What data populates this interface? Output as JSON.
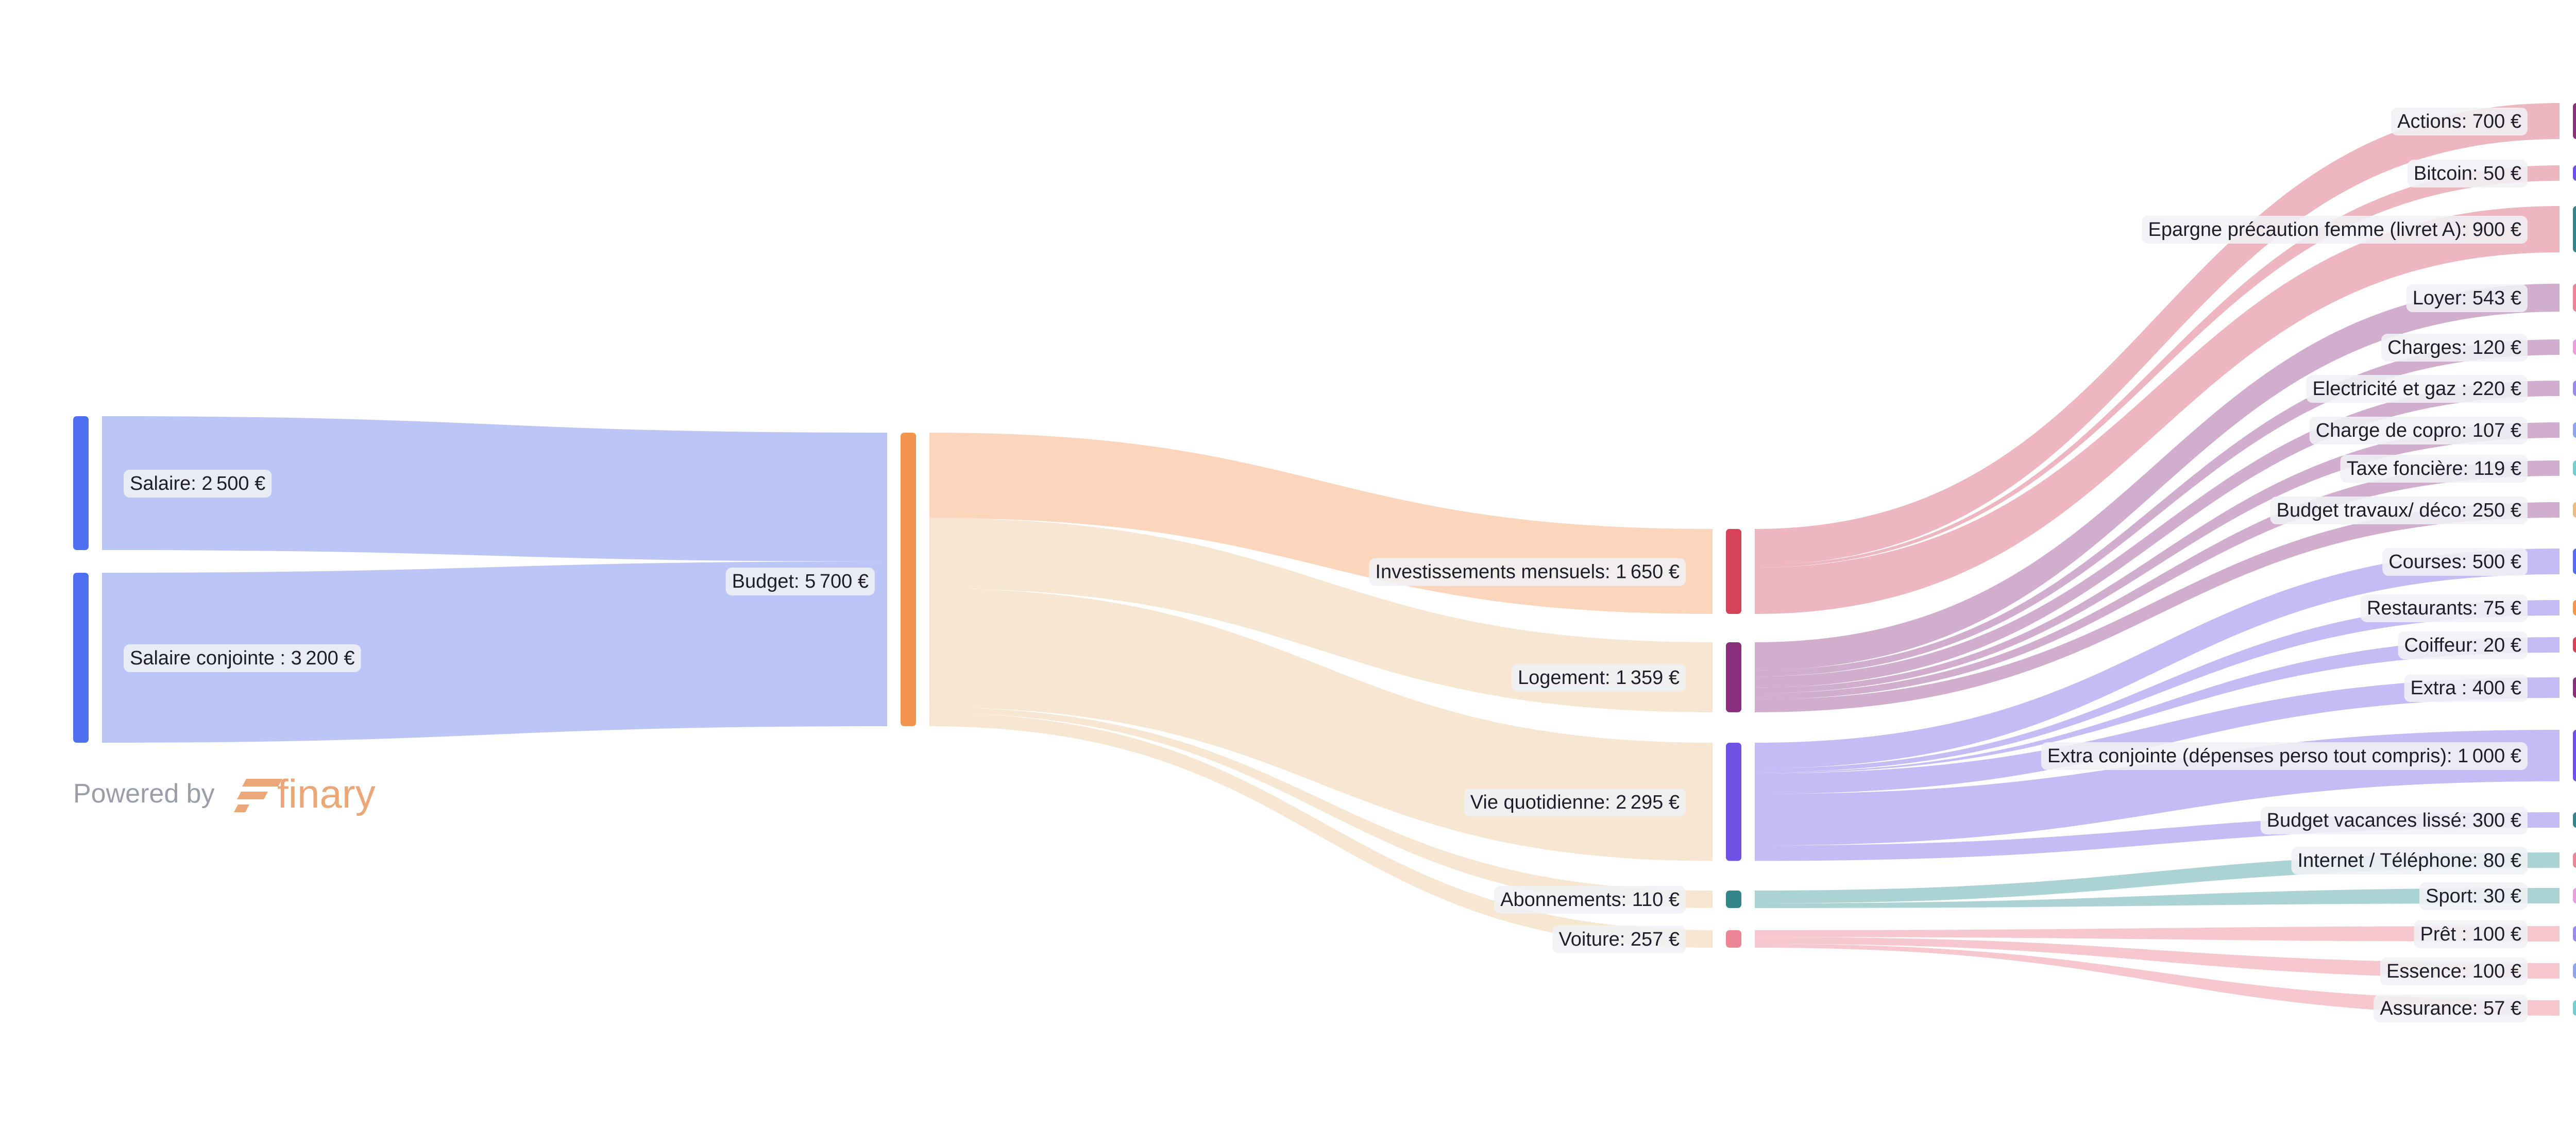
{
  "chart_data": {
    "type": "sankey",
    "currency": "€",
    "columns": [
      [
        {
          "id": "salaire",
          "label": "Salaire",
          "value": 2500,
          "color": "#4f6ef0"
        },
        {
          "id": "salaire_conjointe",
          "label": "Salaire conjointe ",
          "value": 3200,
          "color": "#4f6ef0"
        }
      ],
      [
        {
          "id": "budget",
          "label": "Budget",
          "value": 5700,
          "color": "#f2954f"
        }
      ],
      [
        {
          "id": "investissements",
          "label": "Investissements mensuels",
          "value": 1650,
          "color": "#d64257"
        },
        {
          "id": "logement",
          "label": "Logement",
          "value": 1359,
          "color": "#8a2f7c"
        },
        {
          "id": "vie_quotidienne",
          "label": "Vie quotidienne",
          "value": 2295,
          "color": "#6f52e3"
        },
        {
          "id": "abonnements",
          "label": "Abonnements",
          "value": 110,
          "color": "#33858a"
        },
        {
          "id": "voiture",
          "label": "Voiture",
          "value": 257,
          "color": "#e98594"
        }
      ],
      [
        {
          "id": "actions",
          "label": "Actions",
          "value": 700,
          "color": "#8a2f7c"
        },
        {
          "id": "bitcoin",
          "label": "Bitcoin",
          "value": 50,
          "color": "#6f52e3"
        },
        {
          "id": "epargne",
          "label": "Epargne précaution femme (livret A)",
          "value": 900,
          "color": "#33858a"
        },
        {
          "id": "loyer",
          "label": "Loyer",
          "value": 543,
          "color": "#e98594"
        },
        {
          "id": "charges",
          "label": "Charges",
          "value": 120,
          "color": "#e99ce2"
        },
        {
          "id": "electricite",
          "label": "Electricité et gaz ",
          "value": 220,
          "color": "#9b88ec"
        },
        {
          "id": "copro",
          "label": "Charge de copro",
          "value": 107,
          "color": "#8ba6ea"
        },
        {
          "id": "taxe",
          "label": "Taxe foncière",
          "value": 119,
          "color": "#74cdd0"
        },
        {
          "id": "travaux",
          "label": "Budget travaux/ déco",
          "value": 250,
          "color": "#edbb83"
        },
        {
          "id": "courses",
          "label": "Courses",
          "value": 500,
          "color": "#4f6ef0"
        },
        {
          "id": "restaurants",
          "label": "Restaurants",
          "value": 75,
          "color": "#f2954f"
        },
        {
          "id": "coiffeur",
          "label": "Coiffeur",
          "value": 20,
          "color": "#d64257"
        },
        {
          "id": "extra",
          "label": "Extra ",
          "value": 400,
          "color": "#8a2f7c"
        },
        {
          "id": "extra_conjointe",
          "label": "Extra conjointe (dépenses perso tout compris)",
          "value": 1000,
          "color": "#6f52e3"
        },
        {
          "id": "vacances",
          "label": "Budget vacances lissé",
          "value": 300,
          "color": "#33858a"
        },
        {
          "id": "internet",
          "label": "Internet / Téléphone",
          "value": 80,
          "color": "#e98594"
        },
        {
          "id": "sport",
          "label": "Sport",
          "value": 30,
          "color": "#e99ce2"
        },
        {
          "id": "pret",
          "label": "Prêt ",
          "value": 100,
          "color": "#9b88ec"
        },
        {
          "id": "essence",
          "label": "Essence",
          "value": 100,
          "color": "#8ba6ea"
        },
        {
          "id": "assurance",
          "label": "Assurance",
          "value": 57,
          "color": "#74cdd0"
        }
      ]
    ],
    "links": [
      {
        "source": "salaire",
        "target": "budget",
        "value": 2500,
        "color": "#b7c3f7"
      },
      {
        "source": "salaire_conjointe",
        "target": "budget",
        "value": 3200,
        "color": "#b7c3f7"
      },
      {
        "source": "budget",
        "target": "investissements",
        "value": 1650,
        "color": "#fbd3b8"
      },
      {
        "source": "budget",
        "target": "logement",
        "value": 1359,
        "color": "#f7e5cf"
      },
      {
        "source": "budget",
        "target": "vie_quotidienne",
        "value": 2295,
        "color": "#f7e5cf"
      },
      {
        "source": "budget",
        "target": "abonnements",
        "value": 110,
        "color": "#f7e5cf"
      },
      {
        "source": "budget",
        "target": "voiture",
        "value": 257,
        "color": "#f7e5cf"
      },
      {
        "source": "investissements",
        "target": "actions",
        "value": 700,
        "color": "#ecb2bd"
      },
      {
        "source": "investissements",
        "target": "bitcoin",
        "value": 50,
        "color": "#ecb2bd"
      },
      {
        "source": "investissements",
        "target": "epargne",
        "value": 900,
        "color": "#ecb2bd"
      },
      {
        "source": "logement",
        "target": "loyer",
        "value": 543,
        "color": "#cfa9cb"
      },
      {
        "source": "logement",
        "target": "charges",
        "value": 120,
        "color": "#cfa9cb"
      },
      {
        "source": "logement",
        "target": "electricite",
        "value": 220,
        "color": "#cfa9cb"
      },
      {
        "source": "logement",
        "target": "copro",
        "value": 107,
        "color": "#cfa9cb"
      },
      {
        "source": "logement",
        "target": "taxe",
        "value": 119,
        "color": "#cfa9cb"
      },
      {
        "source": "logement",
        "target": "travaux",
        "value": 250,
        "color": "#cfa9cb"
      },
      {
        "source": "vie_quotidienne",
        "target": "courses",
        "value": 500,
        "color": "#c3b8f4"
      },
      {
        "source": "vie_quotidienne",
        "target": "restaurants",
        "value": 75,
        "color": "#c3b8f4"
      },
      {
        "source": "vie_quotidienne",
        "target": "coiffeur",
        "value": 20,
        "color": "#c3b8f4"
      },
      {
        "source": "vie_quotidienne",
        "target": "extra",
        "value": 400,
        "color": "#c3b8f4"
      },
      {
        "source": "vie_quotidienne",
        "target": "extra_conjointe",
        "value": 1000,
        "color": "#c3b8f4"
      },
      {
        "source": "vie_quotidienne",
        "target": "vacances",
        "value": 300,
        "color": "#c3b8f4"
      },
      {
        "source": "abonnements",
        "target": "internet",
        "value": 80,
        "color": "#a8d1d1"
      },
      {
        "source": "abonnements",
        "target": "sport",
        "value": 30,
        "color": "#a8d1d1"
      },
      {
        "source": "voiture",
        "target": "pret",
        "value": 100,
        "color": "#f6c4cc"
      },
      {
        "source": "voiture",
        "target": "essence",
        "value": 100,
        "color": "#f6c4cc"
      },
      {
        "source": "voiture",
        "target": "assurance",
        "value": 57,
        "color": "#f6c4cc"
      }
    ]
  },
  "footer": {
    "powered_by": "Powered by",
    "brand": "finary",
    "brand_color": "#eba777"
  }
}
